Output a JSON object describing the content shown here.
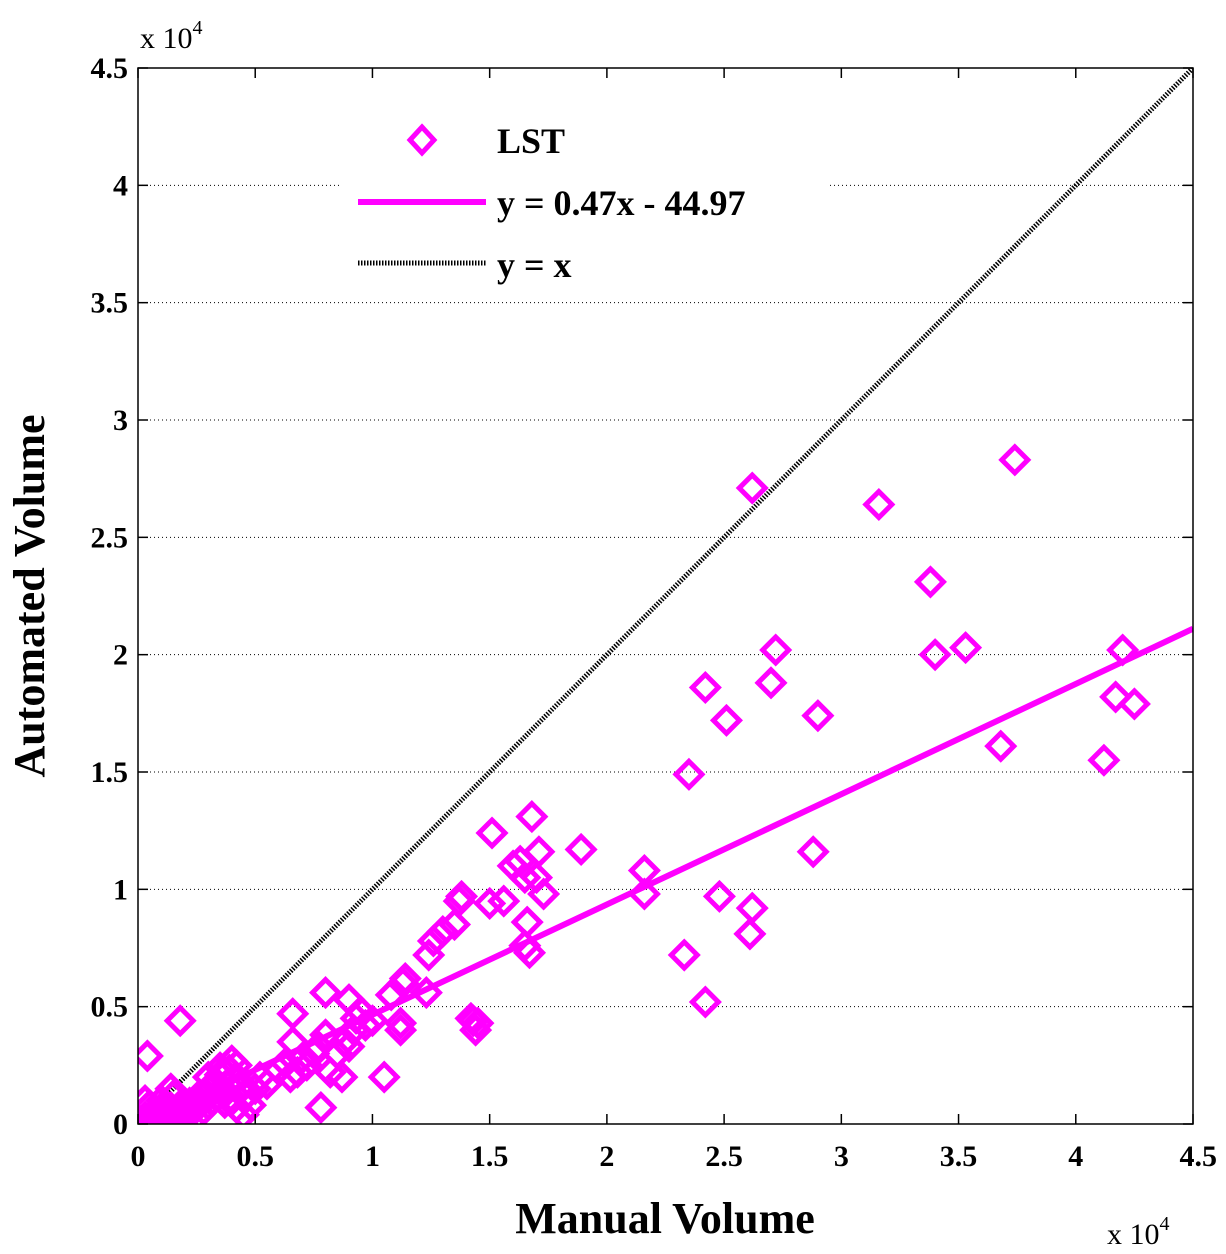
{
  "chart_data": {
    "type": "scatter",
    "title": "",
    "xlabel": "Manual Volume",
    "ylabel": "Automated Volume",
    "x_multiplier": {
      "base": "x 10",
      "exponent": "4"
    },
    "y_multiplier": {
      "base": "x 10",
      "exponent": "4"
    },
    "xlim": [
      0,
      4.5
    ],
    "ylim": [
      0,
      4.5
    ],
    "x_ticks": [
      "0",
      "0.5",
      "1",
      "1.5",
      "2",
      "2.5",
      "3",
      "3.5",
      "4",
      "4.5"
    ],
    "y_ticks": [
      "0",
      "0.5",
      "1",
      "1.5",
      "2",
      "2.5",
      "3",
      "3.5",
      "4",
      "4.5"
    ],
    "grid": "horizontal-dotted",
    "legend_position": "top-left",
    "series": [
      {
        "name": "LST",
        "kind": "scatter",
        "marker": "diamond",
        "color": "#ff00ff",
        "points": [
          [
            0.02,
            0.01
          ],
          [
            0.03,
            0.03
          ],
          [
            0.04,
            0.02
          ],
          [
            0.05,
            0.0
          ],
          [
            0.06,
            0.04
          ],
          [
            0.07,
            0.01
          ],
          [
            0.08,
            0.05
          ],
          [
            0.09,
            0.03
          ],
          [
            0.1,
            0.02
          ],
          [
            0.11,
            0.06
          ],
          [
            0.12,
            0.04
          ],
          [
            0.13,
            0.01
          ],
          [
            0.14,
            0.07
          ],
          [
            0.15,
            0.03
          ],
          [
            0.16,
            0.05
          ],
          [
            0.17,
            0.02
          ],
          [
            0.18,
            0.08
          ],
          [
            0.19,
            0.04
          ],
          [
            0.2,
            0.06
          ],
          [
            0.21,
            0.03
          ],
          [
            0.22,
            0.09
          ],
          [
            0.23,
            0.05
          ],
          [
            0.24,
            0.07
          ],
          [
            0.25,
            0.11
          ],
          [
            0.26,
            0.04
          ],
          [
            0.27,
            0.09
          ],
          [
            0.28,
            0.06
          ],
          [
            0.29,
            0.13
          ],
          [
            0.3,
            0.08
          ],
          [
            0.31,
            0.15
          ],
          [
            0.32,
            0.1
          ],
          [
            0.33,
            0.18
          ],
          [
            0.34,
            0.12
          ],
          [
            0.35,
            0.21
          ],
          [
            0.36,
            0.14
          ],
          [
            0.37,
            0.09
          ],
          [
            0.38,
            0.17
          ],
          [
            0.39,
            0.23
          ],
          [
            0.4,
            0.11
          ],
          [
            0.41,
            0.19
          ],
          [
            0.42,
            0.07
          ],
          [
            0.43,
            0.15
          ],
          [
            0.45,
            0.04
          ],
          [
            0.46,
            0.12
          ],
          [
            0.48,
            0.08
          ],
          [
            0.5,
            0.15
          ],
          [
            0.52,
            0.2
          ],
          [
            0.55,
            0.17
          ],
          [
            0.03,
            0.1
          ],
          [
            0.05,
            0.08
          ],
          [
            0.1,
            0.1
          ],
          [
            0.15,
            0.12
          ],
          [
            0.2,
            0.09
          ],
          [
            0.14,
            0.15
          ],
          [
            0.04,
            0.29
          ],
          [
            0.18,
            0.44
          ],
          [
            0.4,
            0.27
          ],
          [
            0.42,
            0.25
          ],
          [
            0.35,
            0.24
          ],
          [
            0.3,
            0.2
          ],
          [
            0.6,
            0.23
          ],
          [
            0.63,
            0.26
          ],
          [
            0.65,
            0.2
          ],
          [
            0.66,
            0.47
          ],
          [
            0.66,
            0.35
          ],
          [
            0.68,
            0.22
          ],
          [
            0.7,
            0.28
          ],
          [
            0.72,
            0.25
          ],
          [
            0.75,
            0.3
          ],
          [
            0.77,
            0.33
          ],
          [
            0.78,
            0.07
          ],
          [
            0.8,
            0.56
          ],
          [
            0.8,
            0.38
          ],
          [
            0.82,
            0.22
          ],
          [
            0.85,
            0.3
          ],
          [
            0.87,
            0.2
          ],
          [
            0.88,
            0.35
          ],
          [
            0.9,
            0.53
          ],
          [
            0.9,
            0.33
          ],
          [
            0.92,
            0.4
          ],
          [
            0.93,
            0.45
          ],
          [
            0.95,
            0.48
          ],
          [
            0.97,
            0.42
          ],
          [
            1.0,
            0.44
          ],
          [
            1.05,
            0.2
          ],
          [
            1.08,
            0.55
          ],
          [
            1.12,
            0.43
          ],
          [
            1.12,
            0.4
          ],
          [
            1.13,
            0.6
          ],
          [
            1.14,
            0.62
          ],
          [
            1.23,
            0.56
          ],
          [
            1.24,
            0.72
          ],
          [
            1.26,
            0.78
          ],
          [
            1.3,
            0.82
          ],
          [
            1.35,
            0.85
          ],
          [
            1.37,
            0.95
          ],
          [
            1.38,
            0.97
          ],
          [
            1.42,
            0.45
          ],
          [
            1.43,
            0.44
          ],
          [
            1.44,
            0.4
          ],
          [
            1.45,
            0.43
          ],
          [
            1.5,
            0.94
          ],
          [
            1.51,
            1.24
          ],
          [
            1.56,
            0.95
          ],
          [
            1.6,
            1.1
          ],
          [
            1.63,
            1.12
          ],
          [
            1.65,
            1.05
          ],
          [
            1.65,
            0.76
          ],
          [
            1.66,
            0.86
          ],
          [
            1.67,
            0.73
          ],
          [
            1.68,
            1.31
          ],
          [
            1.7,
            1.05
          ],
          [
            1.71,
            1.16
          ],
          [
            1.73,
            0.98
          ],
          [
            1.89,
            1.17
          ],
          [
            2.16,
            0.98
          ],
          [
            2.16,
            1.08
          ],
          [
            2.33,
            0.72
          ],
          [
            2.35,
            1.49
          ],
          [
            2.42,
            1.86
          ],
          [
            2.42,
            0.52
          ],
          [
            2.48,
            0.97
          ],
          [
            2.51,
            1.72
          ],
          [
            2.61,
            0.81
          ],
          [
            2.62,
            0.92
          ],
          [
            2.62,
            2.71
          ],
          [
            2.7,
            1.88
          ],
          [
            2.72,
            2.02
          ],
          [
            2.88,
            1.16
          ],
          [
            2.9,
            1.74
          ],
          [
            3.16,
            2.64
          ],
          [
            3.38,
            2.31
          ],
          [
            3.4,
            2.0
          ],
          [
            3.53,
            2.03
          ],
          [
            3.68,
            1.61
          ],
          [
            3.74,
            2.83
          ],
          [
            4.12,
            1.55
          ],
          [
            4.17,
            1.82
          ],
          [
            4.2,
            2.02
          ],
          [
            4.25,
            1.79
          ]
        ]
      },
      {
        "name": "y = 0.47x - 44.97",
        "kind": "line",
        "style": "solid",
        "color": "#ff00ff",
        "x": [
          0,
          4.5
        ],
        "y": [
          -0.0045,
          2.1105
        ]
      },
      {
        "name": "y = x",
        "kind": "line",
        "style": "dotted",
        "color": "#000000",
        "x": [
          0,
          4.5
        ],
        "y": [
          0,
          4.5
        ]
      }
    ]
  }
}
